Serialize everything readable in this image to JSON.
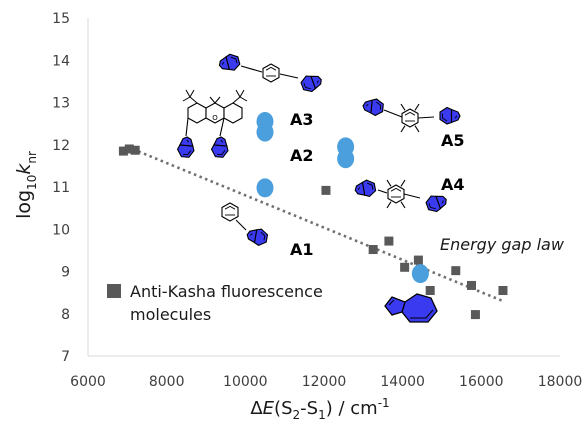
{
  "chart_data": {
    "type": "scatter",
    "title": "",
    "xlabel": {
      "prefix": "Δ",
      "var": "E",
      "paren_open": "(S",
      "sub1": "2",
      "dash": "-S",
      "sub2": "1",
      "paren_close": ")",
      "unit": " / cm",
      "sup": "-1"
    },
    "ylabel": {
      "base": "log",
      "sub": "10",
      "var": "k",
      "var_sub": "nr"
    },
    "xlim": [
      6000,
      18000
    ],
    "ylim": [
      7,
      15
    ],
    "x_ticks": [
      "6000",
      "8000",
      "10000",
      "12000",
      "14000",
      "16000",
      "18000"
    ],
    "y_ticks": [
      "7",
      "8",
      "9",
      "10",
      "11",
      "12",
      "13",
      "14",
      "15"
    ],
    "grid": false,
    "legend": {
      "position": "bottom-left",
      "entries": [
        "Anti-Kasha fluorescence",
        "molecules"
      ]
    },
    "series": [
      {
        "name": "Anti-Kasha fluorescence molecules",
        "marker": "square",
        "color": "#595959",
        "points": [
          {
            "x": 6900,
            "y": 11.85
          },
          {
            "x": 7050,
            "y": 11.9
          },
          {
            "x": 7200,
            "y": 11.87
          },
          {
            "x": 12050,
            "y": 10.92
          },
          {
            "x": 13250,
            "y": 9.52
          },
          {
            "x": 13650,
            "y": 9.72
          },
          {
            "x": 14050,
            "y": 9.1
          },
          {
            "x": 14400,
            "y": 9.27
          },
          {
            "x": 14400,
            "y": 8.98
          },
          {
            "x": 14700,
            "y": 8.55
          },
          {
            "x": 15350,
            "y": 9.02
          },
          {
            "x": 15750,
            "y": 8.67
          },
          {
            "x": 15850,
            "y": 7.98
          },
          {
            "x": 16550,
            "y": 8.55
          }
        ]
      },
      {
        "name": "A",
        "marker": "circle",
        "color": "#4a9fdc",
        "points": [
          {
            "x": 10500,
            "y": 10.98
          },
          {
            "x": 10500,
            "y": 12.3
          },
          {
            "x": 10500,
            "y": 12.55
          },
          {
            "x": 12550,
            "y": 11.67
          },
          {
            "x": 12550,
            "y": 11.95
          },
          {
            "x": 14450,
            "y": 8.95
          }
        ]
      }
    ],
    "trendline": {
      "style": "dotted",
      "color": "#707070",
      "from": {
        "x": 7000,
        "y": 11.95
      },
      "to": {
        "x": 16550,
        "y": 8.3
      }
    },
    "annotations": [
      "A1",
      "A2",
      "A3",
      "A4",
      "A5",
      "Energy gap law"
    ],
    "molecule_color": "#2e2ed6"
  }
}
